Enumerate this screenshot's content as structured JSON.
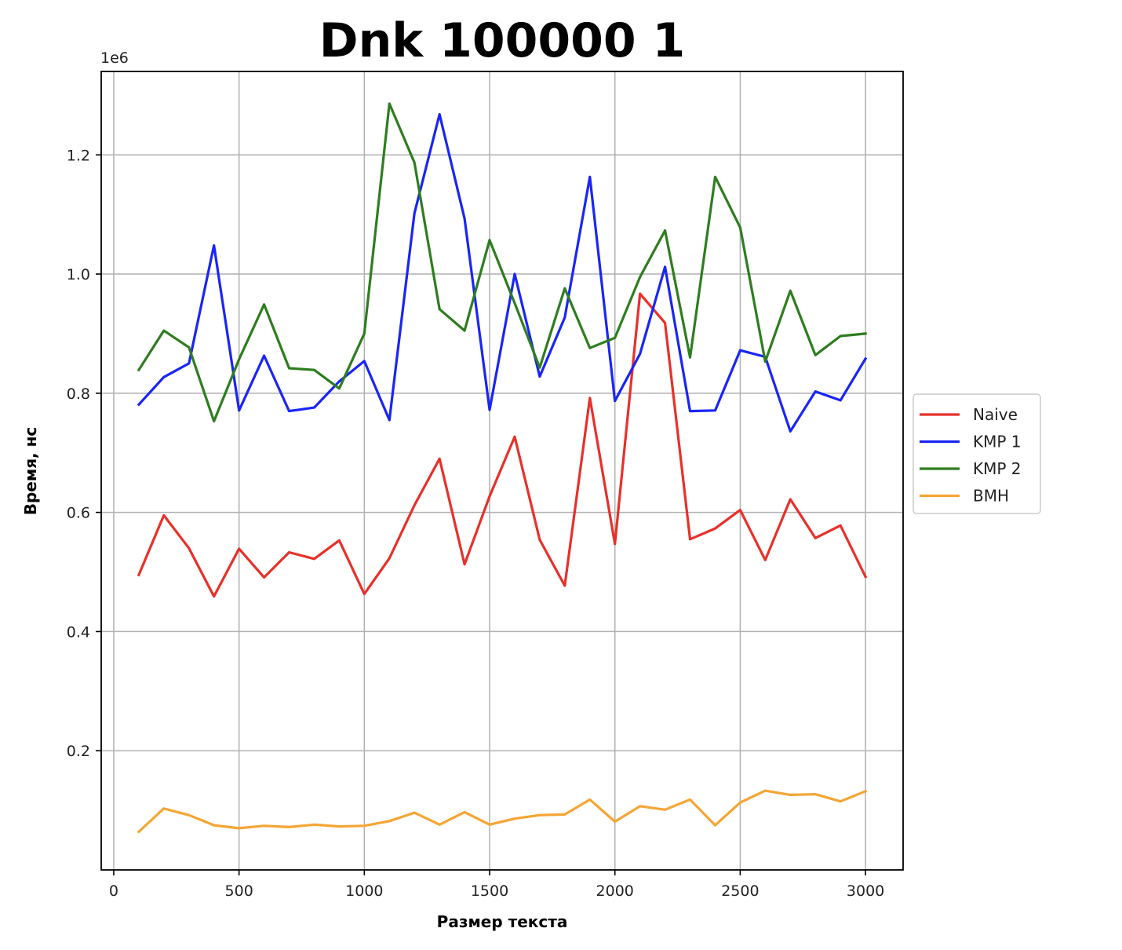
{
  "chart_data": {
    "type": "line",
    "title": "Dnk 100000 1",
    "xlabel": "Размер текста",
    "ylabel": "Время, нс",
    "y_scale_label": "1e6",
    "y_multiplier": 1000000,
    "xlim": [
      -50,
      3150
    ],
    "ylim": [
      0.0,
      1.34
    ],
    "x_ticks": [
      0,
      500,
      1000,
      1500,
      2000,
      2500,
      3000
    ],
    "x_tick_labels": [
      "0",
      "500",
      "1000",
      "1500",
      "2000",
      "2500",
      "3000"
    ],
    "y_ticks": [
      0.2,
      0.4,
      0.6,
      0.8,
      1.0,
      1.2
    ],
    "y_tick_labels": [
      "0.2",
      "0.4",
      "0.6",
      "0.8",
      "1.0",
      "1.2"
    ],
    "grid": true,
    "legend_position": "outside-right",
    "x": [
      100,
      200,
      300,
      400,
      500,
      600,
      700,
      800,
      900,
      1000,
      1100,
      1200,
      1300,
      1400,
      1500,
      1600,
      1700,
      1800,
      1900,
      2000,
      2100,
      2200,
      2300,
      2400,
      2500,
      2600,
      2700,
      2800,
      2900,
      3000
    ],
    "series": [
      {
        "name": "Naive",
        "color": "#e8302a",
        "values": [
          0.495,
          0.595,
          0.54,
          0.459,
          0.539,
          0.491,
          0.533,
          0.522,
          0.553,
          0.463,
          0.523,
          0.612,
          0.69,
          0.513,
          0.627,
          0.727,
          0.554,
          0.477,
          0.792,
          0.547,
          0.967,
          0.918,
          0.555,
          0.573,
          0.604,
          0.52,
          0.622,
          0.557,
          0.578,
          0.492
        ]
      },
      {
        "name": "KMP 1",
        "color": "#1a25f5",
        "values": [
          0.781,
          0.827,
          0.85,
          1.048,
          0.771,
          0.863,
          0.77,
          0.776,
          0.82,
          0.854,
          0.755,
          1.102,
          1.268,
          1.093,
          0.772,
          1.0,
          0.828,
          0.927,
          1.163,
          0.787,
          0.866,
          1.012,
          0.77,
          0.771,
          0.872,
          0.861,
          0.736,
          0.803,
          0.788,
          0.858
        ]
      },
      {
        "name": "KMP 2",
        "color": "#2e7d1f",
        "values": [
          0.839,
          0.905,
          0.877,
          0.753,
          0.857,
          0.949,
          0.842,
          0.839,
          0.808,
          0.9,
          1.286,
          1.187,
          0.941,
          0.905,
          1.057,
          0.951,
          0.843,
          0.976,
          0.876,
          0.893,
          0.995,
          1.073,
          0.86,
          1.163,
          1.078,
          0.853,
          0.972,
          0.864,
          0.896,
          0.9
        ]
      },
      {
        "name": "BMH",
        "color": "#f5a534",
        "values": [
          0.064,
          0.103,
          0.092,
          0.075,
          0.07,
          0.074,
          0.072,
          0.076,
          0.073,
          0.074,
          0.082,
          0.096,
          0.076,
          0.097,
          0.076,
          0.086,
          0.092,
          0.093,
          0.118,
          0.081,
          0.107,
          0.101,
          0.118,
          0.075,
          0.113,
          0.133,
          0.126,
          0.127,
          0.115,
          0.132
        ]
      }
    ]
  }
}
